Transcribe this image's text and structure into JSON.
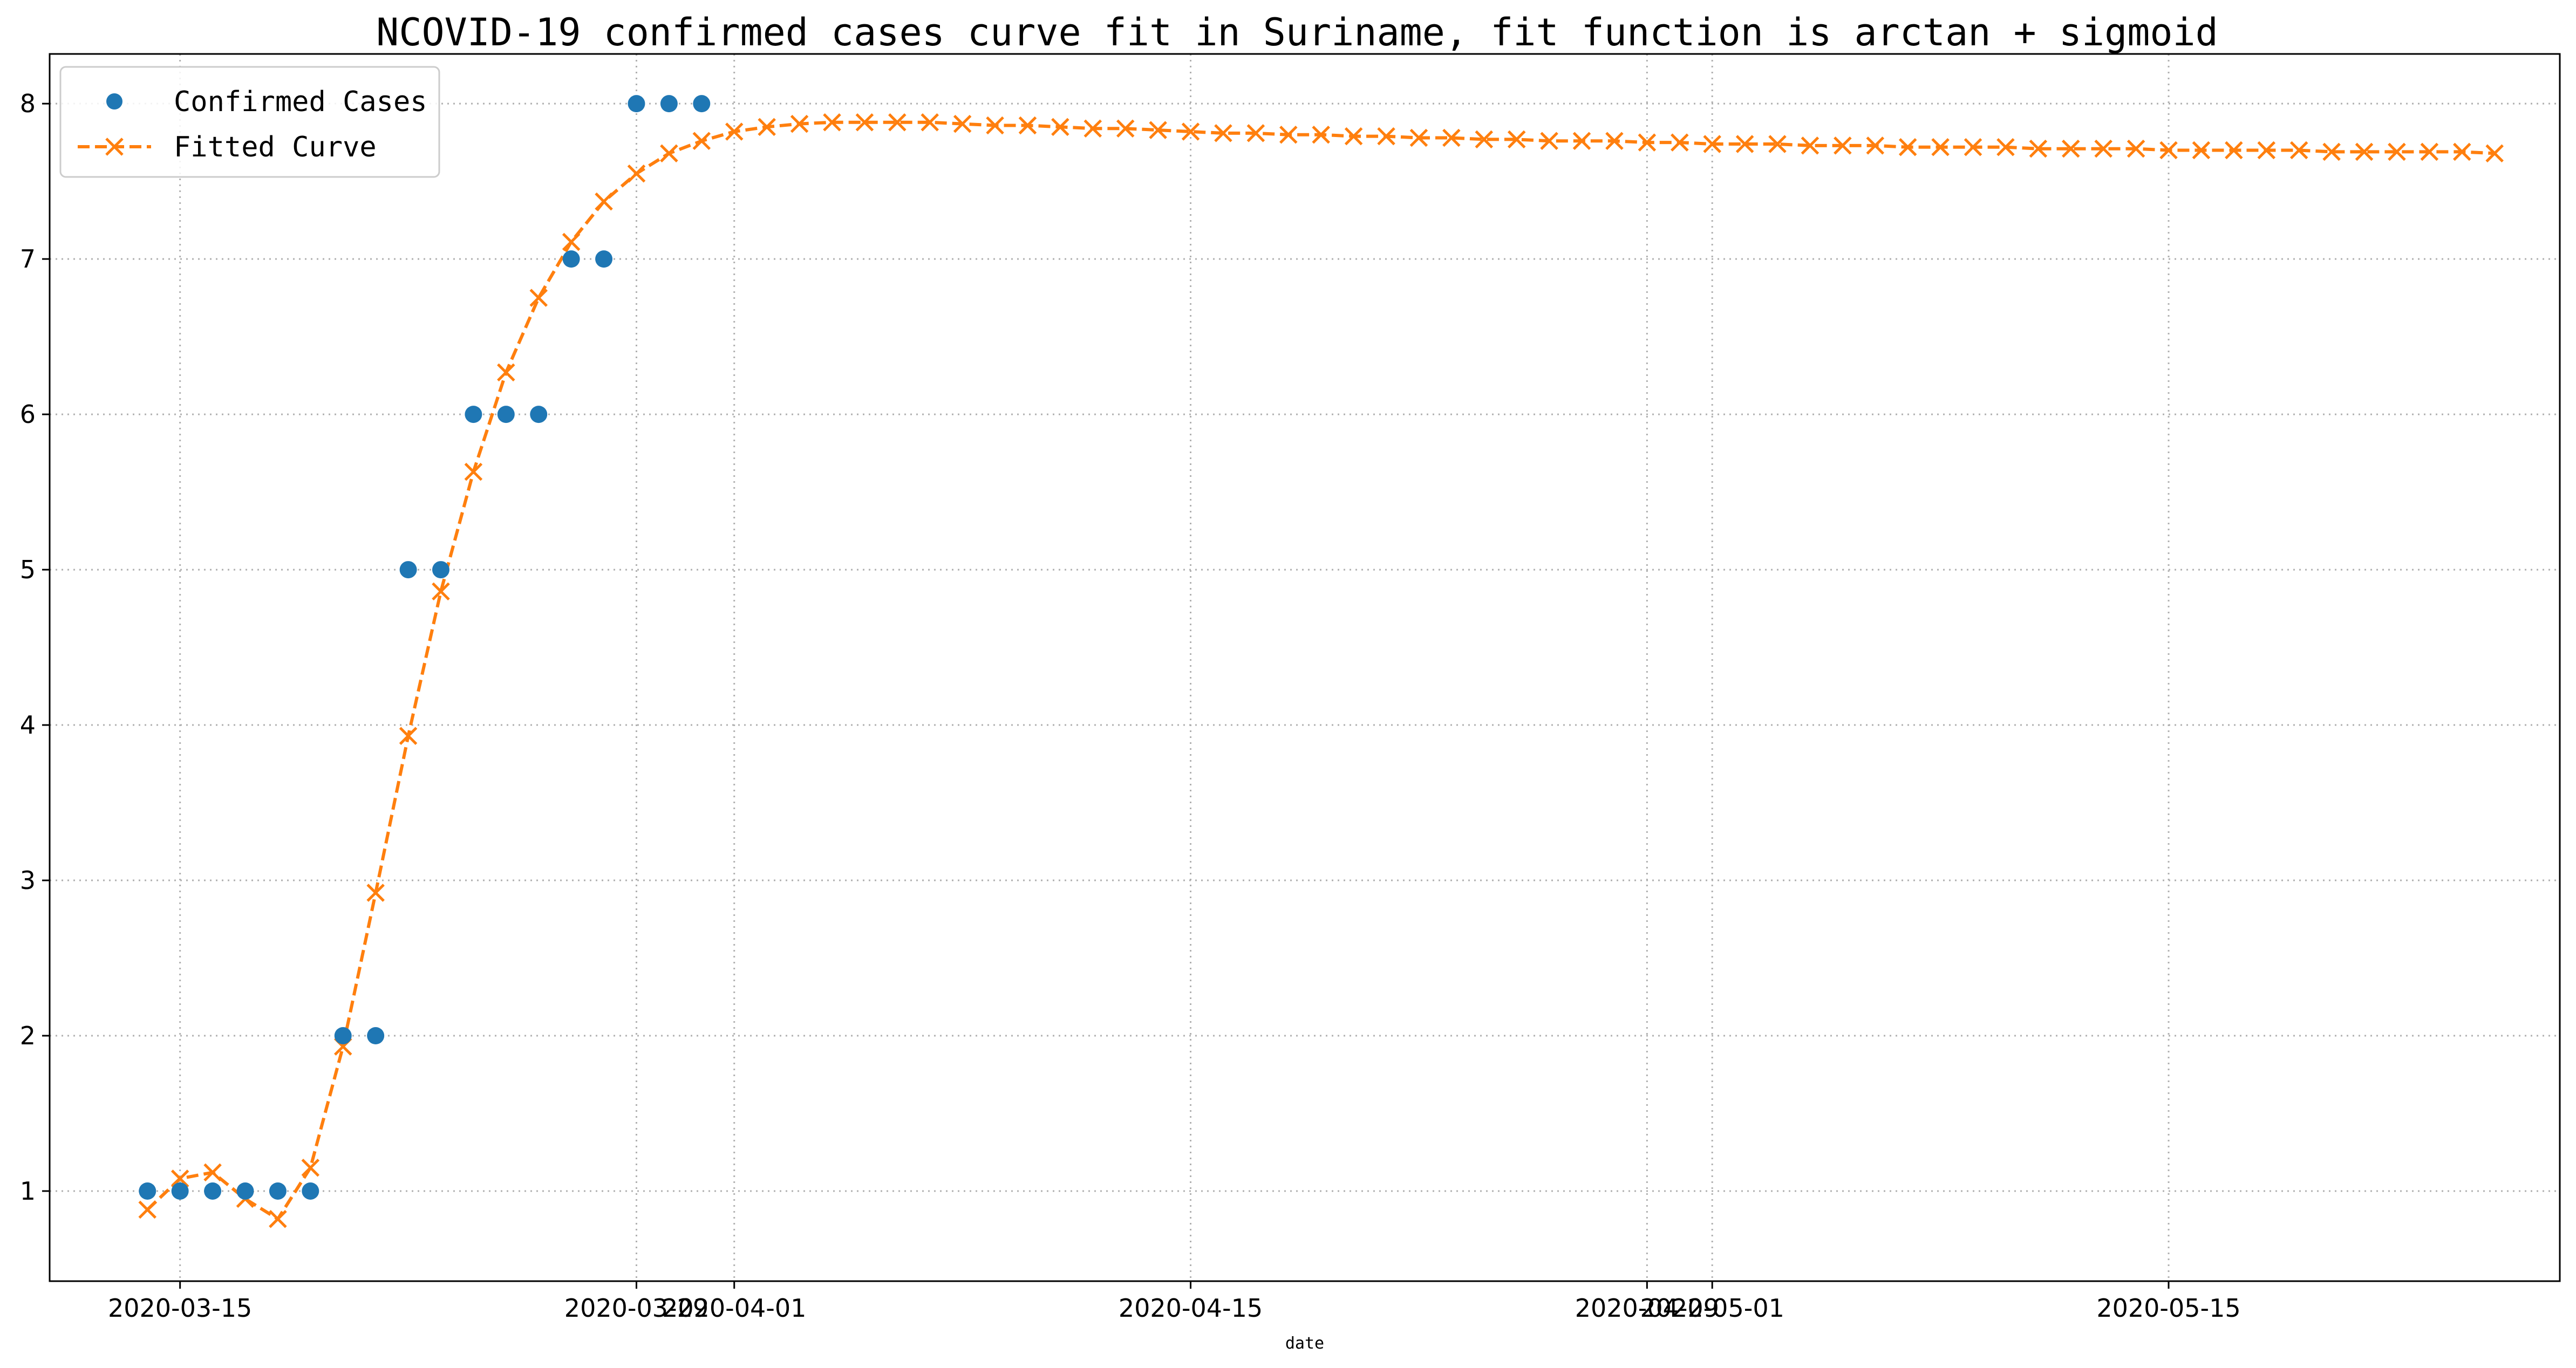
{
  "chart_data": {
    "type": "line",
    "title": "NCOVID-19 confirmed cases curve fit in Suriname, fit function is arctan + sigmoid",
    "xlabel": "date",
    "ylabel": "",
    "x_start": "2020-03-14",
    "ylim": [
      0.42,
      8.32
    ],
    "xlim": [
      "2020-03-11",
      "2020-05-27"
    ],
    "grid": true,
    "legend_position": "top-left",
    "x_ticks": [
      "2020-03-15",
      "2020-03-29",
      "2020-04-01",
      "2020-04-15",
      "2020-04-29",
      "2020-05-01",
      "2020-05-15"
    ],
    "y_ticks": [
      1,
      2,
      3,
      4,
      5,
      6,
      7,
      8
    ],
    "series": [
      {
        "name": "Confirmed Cases",
        "style": "markers",
        "marker": "circle",
        "color": "#1f77b4",
        "dates": [
          "2020-03-14",
          "2020-03-15",
          "2020-03-16",
          "2020-03-17",
          "2020-03-18",
          "2020-03-19",
          "2020-03-20",
          "2020-03-21",
          "2020-03-22",
          "2020-03-23",
          "2020-03-24",
          "2020-03-25",
          "2020-03-26",
          "2020-03-27",
          "2020-03-28",
          "2020-03-29",
          "2020-03-30",
          "2020-03-31"
        ],
        "values": [
          1,
          1,
          1,
          1,
          1,
          1,
          2,
          2,
          5,
          5,
          6,
          6,
          6,
          7,
          7,
          8,
          8,
          8
        ]
      },
      {
        "name": "Fitted Curve",
        "style": "dashed-line",
        "marker": "x",
        "color": "#ff7f0e",
        "date_start": "2020-03-14",
        "values": [
          0.88,
          1.08,
          1.12,
          0.95,
          0.82,
          1.15,
          1.93,
          2.92,
          3.93,
          4.86,
          5.63,
          6.27,
          6.75,
          7.11,
          7.37,
          7.55,
          7.68,
          7.76,
          7.82,
          7.85,
          7.87,
          7.88,
          7.88,
          7.88,
          7.88,
          7.87,
          7.86,
          7.86,
          7.85,
          7.84,
          7.84,
          7.83,
          7.82,
          7.81,
          7.81,
          7.8,
          7.8,
          7.79,
          7.79,
          7.78,
          7.78,
          7.77,
          7.77,
          7.76,
          7.76,
          7.76,
          7.75,
          7.75,
          7.74,
          7.74,
          7.74,
          7.73,
          7.73,
          7.73,
          7.72,
          7.72,
          7.72,
          7.72,
          7.71,
          7.71,
          7.71,
          7.71,
          7.7,
          7.7,
          7.7,
          7.7,
          7.7,
          7.69,
          7.69,
          7.69,
          7.69,
          7.69,
          7.68
        ]
      }
    ]
  }
}
